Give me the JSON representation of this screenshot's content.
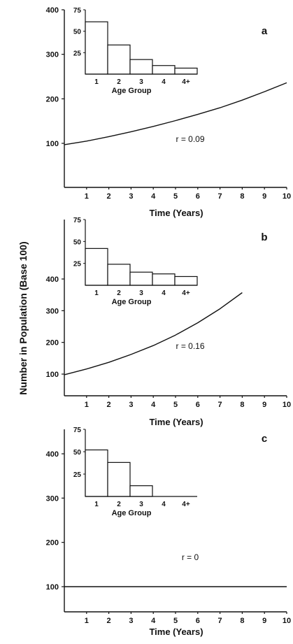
{
  "y_axis_label": "Number   in   Population        (Base 100)",
  "chart_data": [
    {
      "type": "line",
      "panel": "a",
      "xlabel": "Time (Years)",
      "xlim": [
        0,
        10
      ],
      "ylim": [
        0,
        400
      ],
      "x_ticks": [
        1,
        2,
        3,
        4,
        5,
        6,
        7,
        8,
        9,
        10
      ],
      "y_ticks": [
        100,
        200,
        300,
        400
      ],
      "annotation": "r = 0.09",
      "series": [
        {
          "x": [
            0,
            1,
            2,
            3,
            4,
            5,
            6,
            7,
            8,
            9,
            10
          ],
          "y": [
            97,
            105,
            115,
            126,
            138,
            151,
            165,
            180,
            197,
            216,
            236
          ]
        }
      ],
      "inset": {
        "type": "bar",
        "xlabel": "Age Group",
        "categories": [
          "1",
          "2",
          "3",
          "4",
          "4+"
        ],
        "values": [
          61,
          34,
          17,
          10,
          7
        ],
        "ylim": [
          0,
          75
        ],
        "y_ticks": [
          25,
          50,
          75
        ]
      }
    },
    {
      "type": "line",
      "panel": "b",
      "xlabel": "Time (Years)",
      "xlim": [
        0,
        10
      ],
      "ylim": [
        0,
        400
      ],
      "x_ticks": [
        1,
        2,
        3,
        4,
        5,
        6,
        7,
        8,
        9,
        10
      ],
      "y_ticks": [
        100,
        200,
        300,
        400
      ],
      "annotation": "r = 0.16",
      "series": [
        {
          "x": [
            0,
            1,
            2,
            3,
            4,
            5,
            6,
            7,
            8
          ],
          "y": [
            98,
            116,
            137,
            162,
            190,
            223,
            262,
            306,
            357
          ]
        }
      ],
      "inset": {
        "type": "bar",
        "xlabel": "Age Group",
        "categories": [
          "1",
          "2",
          "3",
          "4",
          "4+"
        ],
        "values": [
          42,
          24,
          15,
          13,
          10
        ],
        "ylim": [
          0,
          75
        ],
        "y_ticks": [
          25,
          50,
          75
        ]
      }
    },
    {
      "type": "line",
      "panel": "c",
      "xlabel": "Time (Years)",
      "xlim": [
        0,
        10
      ],
      "ylim": [
        0,
        400
      ],
      "x_ticks": [
        1,
        2,
        3,
        4,
        5,
        6,
        7,
        8,
        9,
        10
      ],
      "y_ticks": [
        100,
        200,
        300,
        400
      ],
      "annotation": "r = 0",
      "series": [
        {
          "x": [
            0,
            10
          ],
          "y": [
            100,
            100
          ]
        }
      ],
      "inset": {
        "type": "bar",
        "xlabel": "Age Group",
        "categories": [
          "1",
          "2",
          "3",
          "4",
          "4+"
        ],
        "values": [
          52,
          38,
          12,
          0,
          0
        ],
        "ylim": [
          0,
          75
        ],
        "y_ticks": [
          25,
          50,
          75
        ]
      }
    }
  ]
}
